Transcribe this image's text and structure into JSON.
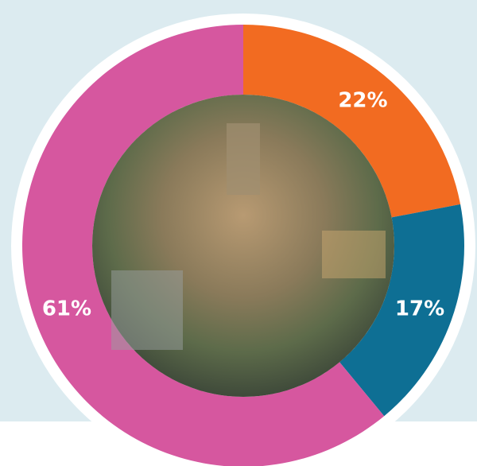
{
  "chart_data": {
    "type": "pie",
    "categories": [
      null,
      null,
      null
    ],
    "values": [
      22,
      17,
      61
    ],
    "value_labels": [
      "22%",
      "17%",
      "61%"
    ],
    "colors": [
      "#f26b21",
      "#0e6f94",
      "#d6579f"
    ],
    "donut": true
  }
}
